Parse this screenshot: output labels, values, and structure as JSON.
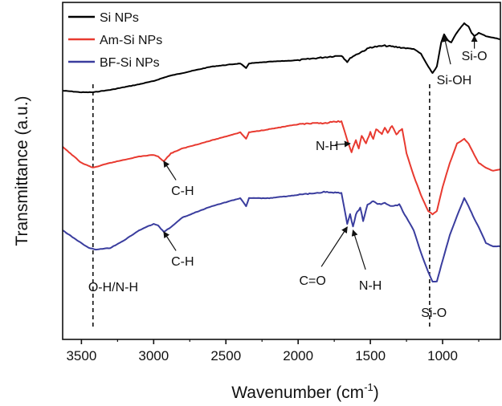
{
  "chart_data": {
    "type": "line",
    "title": "",
    "xlabel": "Wavenumber (cm",
    "xlabel_sup": "-1",
    "xlabel_close": ")",
    "ylabel": "Transmittance (a.u.)",
    "x_reversed": true,
    "xlim": [
      3630,
      600
    ],
    "xticks": [
      3500,
      3000,
      2500,
      2000,
      1500,
      1000
    ],
    "yticks": "none",
    "grid": false,
    "legend_position": "top-left",
    "series": [
      {
        "name": "Si NPs",
        "color": "#000000",
        "points": [
          [
            3630,
            45
          ],
          [
            3500,
            44
          ],
          [
            3420,
            44
          ],
          [
            3300,
            45.5
          ],
          [
            3100,
            49
          ],
          [
            3000,
            51
          ],
          [
            2900,
            54
          ],
          [
            2800,
            56
          ],
          [
            2600,
            60
          ],
          [
            2400,
            62
          ],
          [
            2360,
            59
          ],
          [
            2340,
            62
          ],
          [
            2200,
            63
          ],
          [
            2000,
            64
          ],
          [
            1900,
            65
          ],
          [
            1800,
            66
          ],
          [
            1700,
            67
          ],
          [
            1660,
            63
          ],
          [
            1630,
            66
          ],
          [
            1500,
            72
          ],
          [
            1400,
            73
          ],
          [
            1300,
            72
          ],
          [
            1200,
            71
          ],
          [
            1150,
            68
          ],
          [
            1100,
            60
          ],
          [
            1070,
            56
          ],
          [
            1040,
            60
          ],
          [
            1010,
            75
          ],
          [
            990,
            80
          ],
          [
            960,
            76
          ],
          [
            940,
            75
          ],
          [
            910,
            80
          ],
          [
            870,
            85
          ],
          [
            850,
            87
          ],
          [
            820,
            85
          ],
          [
            800,
            81
          ],
          [
            780,
            79
          ],
          [
            750,
            81
          ],
          [
            700,
            79
          ],
          [
            650,
            78
          ],
          [
            600,
            77
          ]
        ]
      },
      {
        "name": "Am-Si NPs",
        "color": "#e83a30",
        "points": [
          [
            3630,
            10
          ],
          [
            3500,
            0
          ],
          [
            3420,
            -3
          ],
          [
            3300,
            0
          ],
          [
            3200,
            2
          ],
          [
            3100,
            4
          ],
          [
            3000,
            5
          ],
          [
            2970,
            4
          ],
          [
            2930,
            1
          ],
          [
            2880,
            6
          ],
          [
            2800,
            9
          ],
          [
            2600,
            14
          ],
          [
            2400,
            19
          ],
          [
            2360,
            15
          ],
          [
            2340,
            19
          ],
          [
            2200,
            21
          ],
          [
            2000,
            24
          ],
          [
            1800,
            25
          ],
          [
            1700,
            26
          ],
          [
            1660,
            14
          ],
          [
            1630,
            7
          ],
          [
            1600,
            14
          ],
          [
            1580,
            9
          ],
          [
            1560,
            17
          ],
          [
            1530,
            12
          ],
          [
            1500,
            19
          ],
          [
            1480,
            15
          ],
          [
            1460,
            21
          ],
          [
            1420,
            18
          ],
          [
            1400,
            22
          ],
          [
            1380,
            19
          ],
          [
            1350,
            23
          ],
          [
            1320,
            18
          ],
          [
            1280,
            21
          ],
          [
            1250,
            6
          ],
          [
            1200,
            -8
          ],
          [
            1150,
            -20
          ],
          [
            1100,
            -30
          ],
          [
            1070,
            -32
          ],
          [
            1040,
            -30
          ],
          [
            1000,
            -15
          ],
          [
            950,
            0
          ],
          [
            900,
            12
          ],
          [
            850,
            15
          ],
          [
            820,
            12
          ],
          [
            780,
            5
          ],
          [
            750,
            0
          ],
          [
            700,
            -3
          ],
          [
            650,
            -5
          ],
          [
            600,
            -4
          ]
        ]
      },
      {
        "name": "BF-Si NPs",
        "color": "#3a3d9e",
        "points": [
          [
            3630,
            -42
          ],
          [
            3550,
            -47
          ],
          [
            3450,
            -53
          ],
          [
            3400,
            -54
          ],
          [
            3300,
            -53
          ],
          [
            3200,
            -48
          ],
          [
            3100,
            -42
          ],
          [
            3000,
            -38
          ],
          [
            2970,
            -39
          ],
          [
            2930,
            -43
          ],
          [
            2880,
            -40
          ],
          [
            2800,
            -34
          ],
          [
            2600,
            -27
          ],
          [
            2400,
            -22
          ],
          [
            2360,
            -27
          ],
          [
            2340,
            -22
          ],
          [
            2200,
            -22
          ],
          [
            2000,
            -20
          ],
          [
            1800,
            -18
          ],
          [
            1700,
            -19
          ],
          [
            1660,
            -38
          ],
          [
            1640,
            -32
          ],
          [
            1620,
            -40
          ],
          [
            1600,
            -32
          ],
          [
            1570,
            -28
          ],
          [
            1550,
            -36
          ],
          [
            1520,
            -26
          ],
          [
            1480,
            -24
          ],
          [
            1450,
            -26
          ],
          [
            1400,
            -25
          ],
          [
            1350,
            -27
          ],
          [
            1300,
            -26
          ],
          [
            1250,
            -34
          ],
          [
            1200,
            -42
          ],
          [
            1150,
            -56
          ],
          [
            1100,
            -68
          ],
          [
            1070,
            -74
          ],
          [
            1040,
            -74
          ],
          [
            1010,
            -64
          ],
          [
            950,
            -45
          ],
          [
            900,
            -33
          ],
          [
            850,
            -22
          ],
          [
            820,
            -27
          ],
          [
            780,
            -35
          ],
          [
            750,
            -40
          ],
          [
            700,
            -50
          ],
          [
            650,
            -52
          ],
          [
            600,
            -52
          ]
        ]
      }
    ],
    "reference_lines": [
      3420,
      1090
    ],
    "annotations": [
      {
        "text": "Si-O",
        "x": 780,
        "y": 64,
        "arrow_to": [
          780,
          79
        ]
      },
      {
        "text": "Si-OH",
        "x": 920,
        "y": 49,
        "arrow_to": [
          990,
          79
        ]
      },
      {
        "text": "N-H",
        "x": 1800,
        "y": 8,
        "arrow_to": [
          1640,
          12
        ]
      },
      {
        "text": "C-H",
        "x": 2800,
        "y": -20,
        "arrow_to": [
          2930,
          1
        ]
      },
      {
        "text": "C-H",
        "x": 2800,
        "y": -64,
        "arrow_to": [
          2930,
          -43
        ]
      },
      {
        "text": "C=O",
        "x": 1900,
        "y": -76,
        "arrow_to": [
          1660,
          -40
        ]
      },
      {
        "text": "N-H",
        "x": 1500,
        "y": -79,
        "arrow_to": [
          1620,
          -42
        ]
      },
      {
        "text": "O-H/N-H",
        "x": 3280,
        "y": -80,
        "arrow_to": null
      },
      {
        "text": "Si-O",
        "x": 1060,
        "y": -96,
        "arrow_to": null
      }
    ]
  }
}
